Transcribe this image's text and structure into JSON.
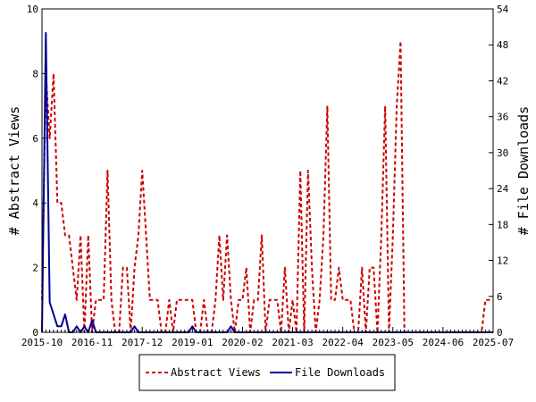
{
  "chart_data": {
    "type": "line",
    "ylabel": "# Abstract Views",
    "y2label": "# File Downloads",
    "ylim": [
      0,
      10
    ],
    "y2lim": [
      0,
      54
    ],
    "yticks": [
      "0",
      "2",
      "4",
      "6",
      "8",
      "10"
    ],
    "y2ticks": [
      "0",
      "6",
      "12",
      "18",
      "24",
      "30",
      "36",
      "42",
      "48",
      "54"
    ],
    "xticks": [
      "2015-10",
      "2016-11",
      "2017-12",
      "2019-01",
      "2020-02",
      "2021-03",
      "2022-04",
      "2023-05",
      "2024-06",
      "2025-07"
    ],
    "grid": false,
    "legend_position": "bottom-center",
    "colors": {
      "abstract": "#cc0000",
      "downloads": "#000099"
    },
    "series": [
      {
        "name": "Abstract Views",
        "axis": "left",
        "style": "dashed",
        "values": [
          [
            "2015-10",
            1
          ],
          [
            "2015-11",
            8
          ],
          [
            "2015-12",
            6
          ],
          [
            "2016-01",
            8
          ],
          [
            "2016-02",
            4
          ],
          [
            "2016-03",
            4
          ],
          [
            "2016-04",
            3
          ],
          [
            "2016-05",
            3
          ],
          [
            "2016-06",
            2
          ],
          [
            "2016-07",
            1
          ],
          [
            "2016-08",
            3
          ],
          [
            "2016-09",
            0
          ],
          [
            "2016-10",
            3
          ],
          [
            "2016-11",
            0
          ],
          [
            "2016-12",
            1
          ],
          [
            "2017-01",
            1
          ],
          [
            "2017-02",
            1
          ],
          [
            "2017-03",
            5
          ],
          [
            "2017-04",
            1
          ],
          [
            "2017-05",
            0
          ],
          [
            "2017-06",
            0
          ],
          [
            "2017-07",
            2
          ],
          [
            "2017-08",
            2
          ],
          [
            "2017-09",
            0
          ],
          [
            "2017-10",
            2
          ],
          [
            "2017-11",
            3
          ],
          [
            "2017-12",
            5
          ],
          [
            "2018-01",
            3
          ],
          [
            "2018-02",
            1
          ],
          [
            "2018-03",
            1
          ],
          [
            "2018-04",
            1
          ],
          [
            "2018-05",
            0
          ],
          [
            "2018-06",
            0
          ],
          [
            "2018-07",
            1
          ],
          [
            "2018-08",
            0
          ],
          [
            "2018-09",
            1
          ],
          [
            "2018-10",
            1
          ],
          [
            "2018-11",
            1
          ],
          [
            "2018-12",
            1
          ],
          [
            "2019-01",
            1
          ],
          [
            "2019-02",
            0
          ],
          [
            "2019-03",
            0
          ],
          [
            "2019-04",
            1
          ],
          [
            "2019-05",
            0
          ],
          [
            "2019-06",
            0
          ],
          [
            "2019-07",
            1
          ],
          [
            "2019-08",
            3
          ],
          [
            "2019-09",
            1
          ],
          [
            "2019-10",
            3
          ],
          [
            "2019-11",
            1
          ],
          [
            "2019-12",
            0
          ],
          [
            "2020-01",
            1
          ],
          [
            "2020-02",
            1
          ],
          [
            "2020-03",
            2
          ],
          [
            "2020-04",
            0
          ],
          [
            "2020-05",
            1
          ],
          [
            "2020-06",
            1
          ],
          [
            "2020-07",
            3
          ],
          [
            "2020-08",
            0
          ],
          [
            "2020-09",
            1
          ],
          [
            "2020-10",
            1
          ],
          [
            "2020-11",
            1
          ],
          [
            "2020-12",
            0
          ],
          [
            "2021-01",
            2
          ],
          [
            "2021-02",
            0
          ],
          [
            "2021-03",
            1
          ],
          [
            "2021-04",
            0
          ],
          [
            "2021-05",
            5
          ],
          [
            "2021-06",
            0
          ],
          [
            "2021-07",
            5
          ],
          [
            "2021-08",
            2
          ],
          [
            "2021-09",
            0
          ],
          [
            "2021-10",
            1
          ],
          [
            "2021-11",
            3
          ],
          [
            "2021-12",
            7
          ],
          [
            "2022-01",
            1
          ],
          [
            "2022-02",
            1
          ],
          [
            "2022-03",
            2
          ],
          [
            "2022-04",
            1
          ],
          [
            "2022-05",
            1
          ],
          [
            "2022-06",
            1
          ],
          [
            "2022-07",
            0
          ],
          [
            "2022-08",
            0
          ],
          [
            "2022-09",
            2
          ],
          [
            "2022-10",
            0
          ],
          [
            "2022-11",
            2
          ],
          [
            "2022-12",
            2
          ],
          [
            "2023-01",
            0
          ],
          [
            "2023-02",
            3
          ],
          [
            "2023-03",
            7
          ],
          [
            "2023-04",
            0
          ],
          [
            "2023-05",
            3
          ],
          [
            "2023-06",
            7
          ],
          [
            "2023-07",
            9
          ],
          [
            "2023-08",
            0
          ],
          [
            "2023-09",
            0
          ],
          [
            "2023-10",
            0
          ],
          [
            "2023-11",
            0
          ],
          [
            "2023-12",
            0
          ],
          [
            "2024-01",
            0
          ],
          [
            "2024-02",
            0
          ],
          [
            "2024-03",
            0
          ],
          [
            "2024-04",
            0
          ],
          [
            "2024-05",
            0
          ],
          [
            "2024-06",
            0
          ],
          [
            "2024-07",
            0
          ],
          [
            "2024-08",
            0
          ],
          [
            "2024-09",
            0
          ],
          [
            "2024-10",
            0
          ],
          [
            "2024-11",
            0
          ],
          [
            "2024-12",
            0
          ],
          [
            "2025-01",
            0
          ],
          [
            "2025-02",
            0
          ],
          [
            "2025-03",
            0
          ],
          [
            "2025-04",
            0
          ],
          [
            "2025-05",
            1
          ],
          [
            "2025-06",
            1
          ],
          [
            "2025-07",
            1
          ]
        ]
      },
      {
        "name": "File Downloads",
        "axis": "right",
        "style": "solid",
        "values": [
          [
            "2015-10",
            0
          ],
          [
            "2015-11",
            50
          ],
          [
            "2015-12",
            5
          ],
          [
            "2016-01",
            3
          ],
          [
            "2016-02",
            1
          ],
          [
            "2016-03",
            1
          ],
          [
            "2016-04",
            3
          ],
          [
            "2016-05",
            0
          ],
          [
            "2016-06",
            0
          ],
          [
            "2016-07",
            1
          ],
          [
            "2016-08",
            0
          ],
          [
            "2016-09",
            1
          ],
          [
            "2016-10",
            0
          ],
          [
            "2016-11",
            2
          ],
          [
            "2016-12",
            0
          ],
          [
            "2017-01",
            0
          ],
          [
            "2017-02",
            0
          ],
          [
            "2017-03",
            0
          ],
          [
            "2017-04",
            0
          ],
          [
            "2017-05",
            0
          ],
          [
            "2017-06",
            0
          ],
          [
            "2017-07",
            0
          ],
          [
            "2017-08",
            0
          ],
          [
            "2017-09",
            0
          ],
          [
            "2017-10",
            1
          ],
          [
            "2017-11",
            0
          ],
          [
            "2017-12",
            0
          ],
          [
            "2018-01",
            0
          ],
          [
            "2018-02",
            0
          ],
          [
            "2018-03",
            0
          ],
          [
            "2018-04",
            0
          ],
          [
            "2018-05",
            0
          ],
          [
            "2018-06",
            0
          ],
          [
            "2018-07",
            0
          ],
          [
            "2018-08",
            0
          ],
          [
            "2018-09",
            0
          ],
          [
            "2018-10",
            0
          ],
          [
            "2018-11",
            0
          ],
          [
            "2018-12",
            0
          ],
          [
            "2019-01",
            1
          ],
          [
            "2019-02",
            0
          ],
          [
            "2019-03",
            0
          ],
          [
            "2019-04",
            0
          ],
          [
            "2019-05",
            0
          ],
          [
            "2019-06",
            0
          ],
          [
            "2019-07",
            0
          ],
          [
            "2019-08",
            0
          ],
          [
            "2019-09",
            0
          ],
          [
            "2019-10",
            0
          ],
          [
            "2019-11",
            1
          ],
          [
            "2019-12",
            0
          ],
          [
            "2020-01",
            0
          ],
          [
            "2020-02",
            0
          ],
          [
            "2020-03",
            0
          ],
          [
            "2020-04",
            0
          ],
          [
            "2020-05",
            0
          ],
          [
            "2020-06",
            0
          ],
          [
            "2020-07",
            0
          ],
          [
            "2020-08",
            0
          ],
          [
            "2020-09",
            0
          ],
          [
            "2020-10",
            0
          ],
          [
            "2020-11",
            0
          ],
          [
            "2020-12",
            0
          ],
          [
            "2021-01",
            0
          ],
          [
            "2021-02",
            0
          ],
          [
            "2021-03",
            0
          ],
          [
            "2021-04",
            0
          ],
          [
            "2021-05",
            0
          ],
          [
            "2021-06",
            0
          ],
          [
            "2021-07",
            0
          ],
          [
            "2021-08",
            0
          ],
          [
            "2021-09",
            0
          ],
          [
            "2021-10",
            0
          ],
          [
            "2021-11",
            0
          ],
          [
            "2021-12",
            0
          ],
          [
            "2022-01",
            0
          ],
          [
            "2022-02",
            0
          ],
          [
            "2022-03",
            0
          ],
          [
            "2022-04",
            0
          ],
          [
            "2022-05",
            0
          ],
          [
            "2022-06",
            0
          ],
          [
            "2022-07",
            0
          ],
          [
            "2022-08",
            0
          ],
          [
            "2022-09",
            0
          ],
          [
            "2022-10",
            0
          ],
          [
            "2022-11",
            0
          ],
          [
            "2022-12",
            0
          ],
          [
            "2023-01",
            0
          ],
          [
            "2023-02",
            0
          ],
          [
            "2023-03",
            0
          ],
          [
            "2023-04",
            0
          ],
          [
            "2023-05",
            0
          ],
          [
            "2023-06",
            0
          ],
          [
            "2023-07",
            0
          ],
          [
            "2023-08",
            0
          ],
          [
            "2023-09",
            0
          ],
          [
            "2023-10",
            0
          ],
          [
            "2023-11",
            0
          ],
          [
            "2023-12",
            0
          ],
          [
            "2024-01",
            0
          ],
          [
            "2024-02",
            0
          ],
          [
            "2024-03",
            0
          ],
          [
            "2024-04",
            0
          ],
          [
            "2024-05",
            0
          ],
          [
            "2024-06",
            0
          ],
          [
            "2024-07",
            0
          ],
          [
            "2024-08",
            0
          ],
          [
            "2024-09",
            0
          ],
          [
            "2024-10",
            0
          ],
          [
            "2024-11",
            0
          ],
          [
            "2024-12",
            0
          ],
          [
            "2025-01",
            0
          ],
          [
            "2025-02",
            0
          ],
          [
            "2025-03",
            0
          ],
          [
            "2025-04",
            0
          ],
          [
            "2025-05",
            0
          ],
          [
            "2025-06",
            0
          ],
          [
            "2025-07",
            0
          ]
        ]
      }
    ]
  }
}
